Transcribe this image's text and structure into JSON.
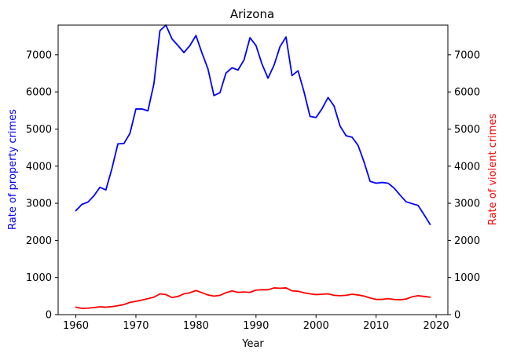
{
  "chart_data": {
    "type": "line",
    "title": "Arizona",
    "xlabel": "Year",
    "ylabel_left": "Rate of property crimes",
    "ylabel_right": "Rate of violent crimes",
    "xlim": [
      1957.05,
      2021.95
    ],
    "ylim": [
      0,
      7800
    ],
    "xticks": [
      1960,
      1970,
      1980,
      1990,
      2000,
      2010,
      2020
    ],
    "yticks": [
      0,
      1000,
      2000,
      3000,
      4000,
      5000,
      6000,
      7000
    ],
    "colors": {
      "property": "#0000ff",
      "violent": "#ff0000",
      "axes": "#000000"
    },
    "series": [
      {
        "axis": "left",
        "color": "#0000ff",
        "x": [
          1960,
          1961,
          1962,
          1963,
          1964,
          1965,
          1966,
          1967,
          1968,
          1969,
          1970,
          1971,
          1972,
          1973,
          1974,
          1975,
          1976,
          1977,
          1978,
          1979,
          1980,
          1981,
          1982,
          1983,
          1984,
          1985,
          1986,
          1987,
          1988,
          1989,
          1990,
          1991,
          1992,
          1993,
          1994,
          1995,
          1996,
          1997,
          1998,
          1999,
          2000,
          2001,
          2002,
          2003,
          2004,
          2005,
          2006,
          2007,
          2008,
          2009,
          2010,
          2011,
          2012,
          2013,
          2014,
          2015,
          2016,
          2017,
          2018,
          2019
        ],
        "values": [
          2800,
          2970,
          3030,
          3200,
          3430,
          3360,
          3930,
          4600,
          4610,
          4880,
          5540,
          5540,
          5490,
          6220,
          7650,
          7800,
          7430,
          7250,
          7060,
          7250,
          7520,
          7050,
          6620,
          5900,
          5980,
          6510,
          6650,
          6590,
          6860,
          7460,
          7250,
          6750,
          6370,
          6720,
          7220,
          7480,
          6440,
          6570,
          6000,
          5340,
          5310,
          5550,
          5850,
          5620,
          5080,
          4820,
          4780,
          4560,
          4110,
          3590,
          3540,
          3560,
          3540,
          3410,
          3220,
          3040,
          2990,
          2940,
          2690,
          2430
        ]
      },
      {
        "axis": "right",
        "color": "#ff0000",
        "x": [
          1960,
          1961,
          1962,
          1963,
          1964,
          1965,
          1966,
          1967,
          1968,
          1969,
          1970,
          1971,
          1972,
          1973,
          1974,
          1975,
          1976,
          1977,
          1978,
          1979,
          1980,
          1981,
          1982,
          1983,
          1984,
          1985,
          1986,
          1987,
          1988,
          1989,
          1990,
          1991,
          1992,
          1993,
          1994,
          1995,
          1996,
          1997,
          1998,
          1999,
          2000,
          2001,
          2002,
          2003,
          2004,
          2005,
          2006,
          2007,
          2008,
          2009,
          2010,
          2011,
          2012,
          2013,
          2014,
          2015,
          2016,
          2017,
          2018,
          2019
        ],
        "values": [
          200,
          170,
          175,
          190,
          210,
          200,
          215,
          240,
          270,
          330,
          360,
          390,
          430,
          470,
          560,
          540,
          460,
          490,
          560,
          590,
          650,
          590,
          530,
          500,
          520,
          590,
          640,
          600,
          610,
          600,
          660,
          670,
          670,
          720,
          710,
          720,
          640,
          630,
          590,
          560,
          540,
          550,
          560,
          520,
          510,
          520,
          550,
          530,
          500,
          450,
          410,
          410,
          430,
          410,
          400,
          420,
          480,
          510,
          490,
          470
        ]
      }
    ]
  }
}
